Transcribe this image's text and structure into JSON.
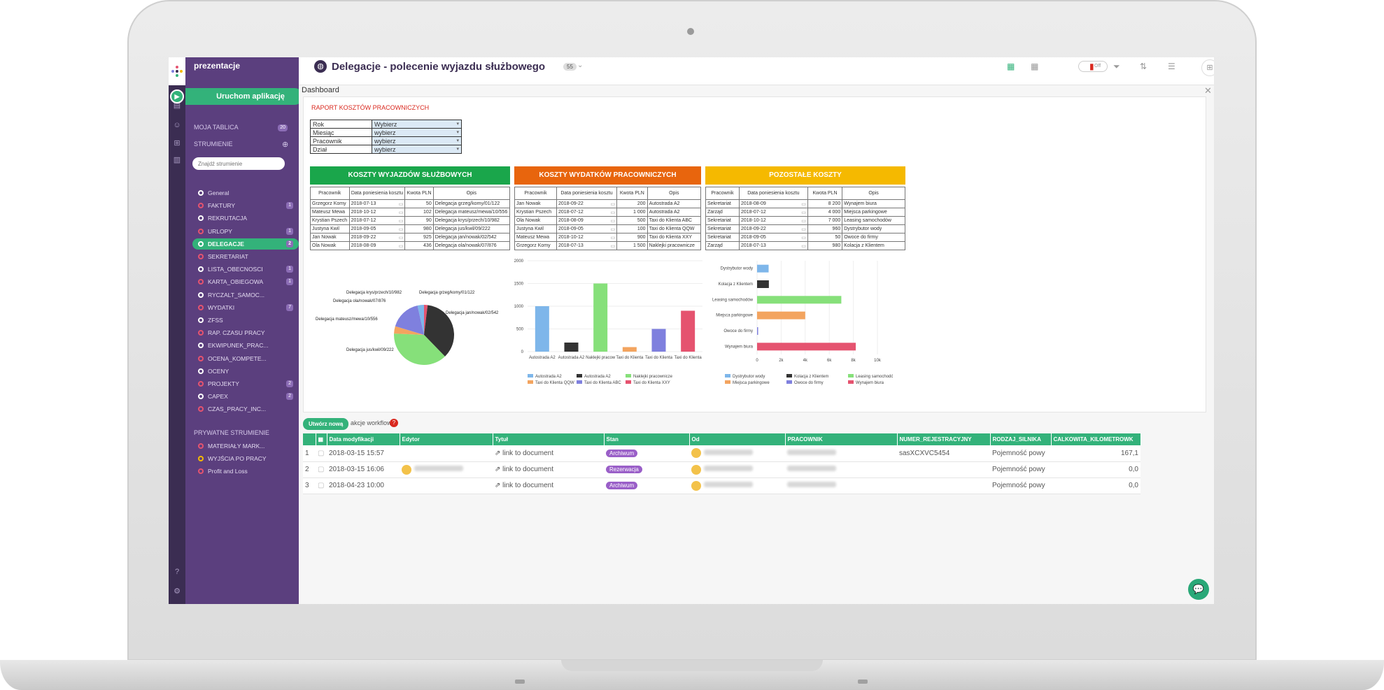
{
  "app": {
    "brand": "prezentacje",
    "launch_label": "Uruchom aplikację"
  },
  "sidebar": {
    "moja_tablica": "MOJA TABLICA",
    "moja_tablica_count": "20",
    "strumienie": "STRUMIENIE",
    "search_placeholder": "Znajdź strumienie",
    "items": [
      {
        "label": "General",
        "badge": ""
      },
      {
        "label": "FAKTURY",
        "badge": "1"
      },
      {
        "label": "REKRUTACJA",
        "badge": ""
      },
      {
        "label": "URLOPY",
        "badge": "1"
      },
      {
        "label": "DELEGACJE",
        "badge": "2"
      },
      {
        "label": "SEKRETARIAT",
        "badge": ""
      },
      {
        "label": "LISTA_OBECNOSCI",
        "badge": "1"
      },
      {
        "label": "KARTA_OBIEGOWA",
        "badge": "1"
      },
      {
        "label": "RYCZALT_SAMOC...",
        "badge": ""
      },
      {
        "label": "WYDATKI",
        "badge": "7"
      },
      {
        "label": "ZFSS",
        "badge": ""
      },
      {
        "label": "RAP. CZASU PRACY",
        "badge": ""
      },
      {
        "label": "EKWIPUNEK_PRAC...",
        "badge": ""
      },
      {
        "label": "OCENA_KOMPETE...",
        "badge": ""
      },
      {
        "label": "OCENY",
        "badge": ""
      },
      {
        "label": "PROJEKTY",
        "badge": "2"
      },
      {
        "label": "CAPEX",
        "badge": "2"
      },
      {
        "label": "CZAS_PRACY_INC...",
        "badge": ""
      }
    ],
    "private_title": "PRYWATNE STRUMIENIE",
    "private_items": [
      {
        "label": "MATERIAŁY MARK..."
      },
      {
        "label": "WYJŚCIA PO PRACY"
      },
      {
        "label": "Profit and Loss"
      }
    ]
  },
  "header": {
    "title": "Delegacje - polecenie wyjazdu służbowego",
    "count": "55",
    "toggle": "Off"
  },
  "dashboard": {
    "label": "Dashboard",
    "report_title": "RAPORT KOSZTÓW PRACOWNICZYCH",
    "filters": [
      {
        "label": "Rok",
        "value": "Wybierz"
      },
      {
        "label": "Miesiąc",
        "value": "wybierz"
      },
      {
        "label": "Pracownik",
        "value": "wybierz"
      },
      {
        "label": "Dział",
        "value": "wybierz"
      }
    ]
  },
  "tables": [
    {
      "title": "KOSZTY WYJAZDÓW SŁUŻBOWYCH",
      "color": "#1aa64b",
      "headers": [
        "Pracownik",
        "Data poniesienia kosztu",
        "Kwota PLN",
        "Opis"
      ],
      "rows": [
        [
          "Grzegorz Komy",
          "2018-07-13",
          "50",
          "Delegacja grzeg/komy/01/122"
        ],
        [
          "Mateusz Mewa",
          "2018-10-12",
          "102",
          "Delegacja mateusz/mewa/10/556"
        ],
        [
          "Krystian Pszech",
          "2018-07-12",
          "90",
          "Delegacja krys/przech/10/982"
        ],
        [
          "Justyna Kwil",
          "2018-09-05",
          "980",
          "Delegacja jus/kwil/09/222"
        ],
        [
          "Jan Nowak",
          "2018-09-22",
          "925",
          "Delegacja jan/nowak/02/542"
        ],
        [
          "Ola Nowak",
          "2018-08-09",
          "436",
          "Delegacja ola/nowak/07/876"
        ]
      ]
    },
    {
      "title": "KOSZTY WYDATKÓW PRACOWNICZYCH",
      "color": "#e8650d",
      "headers": [
        "Pracownik",
        "Data poniesienia kosztu",
        "Kwota PLN",
        "Opis"
      ],
      "rows": [
        [
          "Jan Nowak",
          "2018-09-22",
          "200",
          "Autostrada A2"
        ],
        [
          "Krystian Pszech",
          "2018-07-12",
          "1 000",
          "Autostrada A2"
        ],
        [
          "Ola Nowak",
          "2018-08-09",
          "500",
          "Taxi do Klienta ABC"
        ],
        [
          "Justyna Kwil",
          "2018-09-05",
          "100",
          "Taxi do Klienta QQW"
        ],
        [
          "Mateusz Mewa",
          "2018-10-12",
          "900",
          "Taxi do Klienta XXY"
        ],
        [
          "Grzegorz Komy",
          "2018-07-13",
          "1 500",
          "Naklejki pracownicze"
        ]
      ]
    },
    {
      "title": "POZOSTAŁE KOSZTY",
      "color": "#f5b900",
      "headers": [
        "Pracownik",
        "Data poniesienia kosztu",
        "Kwota PLN",
        "Opis"
      ],
      "rows": [
        [
          "Sekretariat",
          "2018-08-09",
          "8 200",
          "Wynajem biura"
        ],
        [
          "Zarząd",
          "2018-07-12",
          "4 000",
          "Miejsca parkingowe"
        ],
        [
          "Sekretariat",
          "2018-10-12",
          "7 000",
          "Leasing samochodów"
        ],
        [
          "Sekretariat",
          "2018-09-22",
          "960",
          "Dystrybutor wody"
        ],
        [
          "Sekretariat",
          "2018-09-05",
          "50",
          "Owoce do firmy"
        ],
        [
          "Zarząd",
          "2018-07-13",
          "980",
          "Kolacja z Klientem"
        ]
      ]
    }
  ],
  "chart_data": [
    {
      "type": "pie",
      "labels": [
        "Delegacja grzeg/komy/01/122",
        "Delegacja jan/nowak/02/542",
        "Delegacja jus/kwil/09/222",
        "Delegacja mateusz/mewa/10/556",
        "Delegacja ola/nowak/07/876",
        "Delegacja krys/przech/10/982"
      ],
      "values": [
        50,
        925,
        980,
        102,
        436,
        90
      ],
      "colors": [
        "#e5536f",
        "#333333",
        "#86e07a",
        "#f3a45f",
        "#7f80de",
        "#7eb6ea"
      ]
    },
    {
      "type": "bar",
      "categories": [
        "Autostrada A2",
        "Autostrada A2",
        "Naklejki pracow",
        "Taxi do Klienta",
        "Taxi do Klienta",
        "Taxi do Klienta"
      ],
      "values": [
        1000,
        200,
        1500,
        100,
        500,
        900
      ],
      "ylim": [
        0,
        2000
      ],
      "yticks": [
        0,
        500,
        1000,
        1500,
        2000
      ],
      "colors": [
        "#7eb6ea",
        "#333333",
        "#86e07a",
        "#f3a45f",
        "#7f80de",
        "#e5536f"
      ],
      "legend": [
        "Autostrada A2",
        "Autostrada A2",
        "Naklejki pracownicze",
        "Taxi do Klienta QQW",
        "Taxi do Klienta ABC",
        "Taxi do Klienta XXY"
      ]
    },
    {
      "type": "bar",
      "orientation": "horizontal",
      "categories": [
        "Dystrybutor wody",
        "Kolacja z Klientem",
        "Leasing samochodów",
        "Miejsca parkingowe",
        "Owoce do firmy",
        "Wynajem biura"
      ],
      "values": [
        960,
        980,
        7000,
        4000,
        50,
        8200
      ],
      "xlim": [
        0,
        10000
      ],
      "xticks": [
        "0",
        "2k",
        "4k",
        "6k",
        "8k",
        "10k"
      ],
      "colors": [
        "#7eb6ea",
        "#333333",
        "#86e07a",
        "#f3a45f",
        "#7f80de",
        "#e5536f"
      ],
      "legend": [
        "Dystrybutor wody",
        "Kolacja z Klientem",
        "Leasing samochodów",
        "Miejsca parkingowe",
        "Owoce do firmy",
        "Wynajem biura"
      ]
    }
  ],
  "workflow": {
    "create_label": "Utwórz nową",
    "actions_label": "akcje workflow:"
  },
  "grid": {
    "headers": [
      "",
      "",
      "Data modyfikacji",
      "Edytor",
      "Tytuł",
      "Stan",
      "Od",
      "PRACOWNIK",
      "NUMER_REJESTRACYJNY",
      "RODZAJ_SILNIKA",
      "CALKOWITA_KILOMETROWK"
    ],
    "rows": [
      {
        "n": "1",
        "date": "2018-03-15 15:57",
        "title": "link to document",
        "stan": "Archiwum",
        "reg": "sasXCXVC5454",
        "engine": "Pojemność powy",
        "km": "167,1"
      },
      {
        "n": "2",
        "date": "2018-03-15 16:06",
        "title": "link to document",
        "stan": "Rezerwacja",
        "reg": "",
        "engine": "Pojemność powy",
        "km": "0,0"
      },
      {
        "n": "3",
        "date": "2018-04-23 10:00",
        "title": "link to document",
        "stan": "Archiwum",
        "reg": "",
        "engine": "Pojemność powy",
        "km": "0,0"
      }
    ]
  }
}
